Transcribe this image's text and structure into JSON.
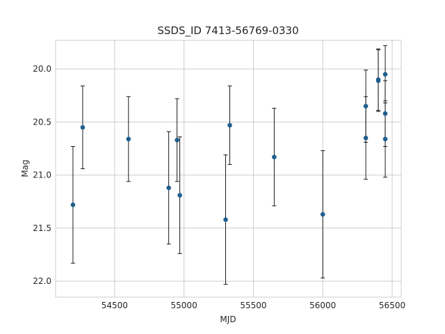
{
  "chart_data": {
    "type": "scatter",
    "title": "SSDS_ID 7413-56769-0330",
    "xlabel": "MJD",
    "ylabel": "Mag",
    "y_inverted": true,
    "xlim": [
      54075,
      56565
    ],
    "ylim": [
      22.15,
      19.73
    ],
    "x_ticks": [
      54500,
      55000,
      55500,
      56000,
      56500
    ],
    "x_tick_labels": [
      "54500",
      "55000",
      "55500",
      "56000",
      "56500"
    ],
    "y_ticks": [
      20.0,
      20.5,
      21.0,
      21.5,
      22.0
    ],
    "y_tick_labels": [
      "20.0",
      "20.5",
      "21.0",
      "21.5",
      "22.0"
    ],
    "grid": true,
    "marker_color": "#1f5f8f",
    "errorbar_color": "#000000",
    "points": [
      {
        "x": 54200,
        "y": 21.28,
        "err": 0.55
      },
      {
        "x": 54270,
        "y": 20.55,
        "err": 0.39
      },
      {
        "x": 54600,
        "y": 20.66,
        "err": 0.4
      },
      {
        "x": 54890,
        "y": 21.12,
        "err": 0.53
      },
      {
        "x": 54950,
        "y": 20.67,
        "err": 0.39
      },
      {
        "x": 54970,
        "y": 21.19,
        "err": 0.55
      },
      {
        "x": 55300,
        "y": 21.42,
        "err": 0.61
      },
      {
        "x": 55330,
        "y": 20.53,
        "err": 0.37
      },
      {
        "x": 55650,
        "y": 20.83,
        "err": 0.46
      },
      {
        "x": 56000,
        "y": 21.37,
        "err": 0.6
      },
      {
        "x": 56310,
        "y": 20.35,
        "err": 0.34
      },
      {
        "x": 56310,
        "y": 20.65,
        "err": 0.39
      },
      {
        "x": 56400,
        "y": 20.11,
        "err": 0.29
      },
      {
        "x": 56400,
        "y": 20.1,
        "err": 0.29
      },
      {
        "x": 56450,
        "y": 20.05,
        "err": 0.27
      },
      {
        "x": 56450,
        "y": 20.42,
        "err": 0.31
      },
      {
        "x": 56450,
        "y": 20.66,
        "err": 0.36
      }
    ]
  }
}
